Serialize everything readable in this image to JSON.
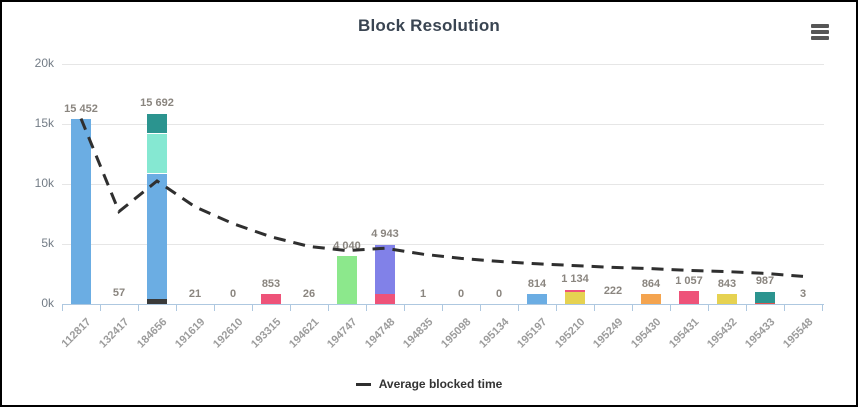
{
  "chart": {
    "menu_tooltip": "chart menu"
  },
  "chart_data": {
    "type": "bar",
    "title": "Block Resolution",
    "xlabel": "",
    "ylabel": "",
    "ylim": [
      0,
      20000
    ],
    "grid": true,
    "legend_position": "bottom",
    "y_ticks": [
      {
        "value": 0,
        "label": "0k"
      },
      {
        "value": 5000,
        "label": "5k"
      },
      {
        "value": 10000,
        "label": "10k"
      },
      {
        "value": 15000,
        "label": "15k"
      },
      {
        "value": 20000,
        "label": "20k"
      }
    ],
    "categories": [
      "112817",
      "132417",
      "184656",
      "191619",
      "192610",
      "193315",
      "194621",
      "194747",
      "194748",
      "194835",
      "195098",
      "195134",
      "195197",
      "195210",
      "195249",
      "195430",
      "195431",
      "195432",
      "195433",
      "195548"
    ],
    "bars": [
      {
        "category": "112817",
        "total": 15452,
        "label": "15 452",
        "segments": [
          {
            "value": 15452,
            "color": "#6BADE3"
          }
        ]
      },
      {
        "category": "132417",
        "total": 57,
        "label": "57",
        "segments": [
          {
            "value": 57,
            "color": null
          }
        ]
      },
      {
        "category": "184656",
        "total": 15692,
        "label": "15 692",
        "segments": [
          {
            "value": 450,
            "color": "#3A3A3A"
          },
          {
            "value": 10400,
            "color": "#6BADE3"
          },
          {
            "value": 3250,
            "color": "#85E8D2"
          },
          {
            "value": 1592,
            "color": "#2B948F"
          }
        ]
      },
      {
        "category": "191619",
        "total": 21,
        "label": "21",
        "segments": [
          {
            "value": 21,
            "color": null
          }
        ]
      },
      {
        "category": "192610",
        "total": 0,
        "label": "0",
        "segments": []
      },
      {
        "category": "193315",
        "total": 853,
        "label": "853",
        "segments": [
          {
            "value": 853,
            "color": "#EE5379"
          }
        ]
      },
      {
        "category": "194621",
        "total": 26,
        "label": "26",
        "segments": [
          {
            "value": 26,
            "color": null
          }
        ]
      },
      {
        "category": "194747",
        "total": 4040,
        "label": "4 040",
        "segments": [
          {
            "value": 4040,
            "color": "#8CE88C"
          }
        ]
      },
      {
        "category": "194748",
        "total": 4943,
        "label": "4 943",
        "segments": [
          {
            "value": 850,
            "color": "#EE5379"
          },
          {
            "value": 4093,
            "color": "#8181E8"
          }
        ]
      },
      {
        "category": "194835",
        "total": 1,
        "label": "1",
        "segments": [
          {
            "value": 1,
            "color": null
          }
        ]
      },
      {
        "category": "195098",
        "total": 0,
        "label": "0",
        "segments": []
      },
      {
        "category": "195134",
        "total": 0,
        "label": "0",
        "segments": []
      },
      {
        "category": "195197",
        "total": 814,
        "label": "814",
        "segments": [
          {
            "value": 814,
            "color": "#6BADE3"
          }
        ]
      },
      {
        "category": "195210",
        "total": 1134,
        "label": "1 134",
        "segments": [
          {
            "value": 1000,
            "color": "#E6D251"
          },
          {
            "value": 134,
            "color": "#EE5379"
          }
        ]
      },
      {
        "category": "195249",
        "total": 222,
        "label": "222",
        "segments": [
          {
            "value": 222,
            "color": null
          }
        ]
      },
      {
        "category": "195430",
        "total": 864,
        "label": "864",
        "segments": [
          {
            "value": 864,
            "color": "#F4A44F"
          }
        ]
      },
      {
        "category": "195431",
        "total": 1057,
        "label": "1 057",
        "segments": [
          {
            "value": 1057,
            "color": "#EE5379"
          }
        ]
      },
      {
        "category": "195432",
        "total": 843,
        "label": "843",
        "segments": [
          {
            "value": 843,
            "color": "#E6D251"
          }
        ]
      },
      {
        "category": "195433",
        "total": 987,
        "label": "987",
        "segments": [
          {
            "value": 80,
            "color": "#E0524E"
          },
          {
            "value": 907,
            "color": "#2B948F"
          }
        ]
      },
      {
        "category": "195548",
        "total": 3,
        "label": "3",
        "segments": [
          {
            "value": 3,
            "color": null
          }
        ]
      }
    ],
    "line_series": {
      "name": "Average blocked time",
      "style": "dashed",
      "color": "#2F2F2F",
      "values": [
        15452,
        7700,
        10250,
        8100,
        6700,
        5600,
        4800,
        4450,
        4650,
        4150,
        3800,
        3550,
        3350,
        3200,
        3050,
        2950,
        2800,
        2700,
        2550,
        2300
      ]
    },
    "colors": {
      "title": "#3A4552",
      "axis_line": "#AEC8E0",
      "grid_line": "#E6E6E6",
      "y_tick_label": "#737C86",
      "x_tick_label": "#9C9C9C",
      "value_label": "#8A857F",
      "legend_text": "#333333"
    }
  }
}
